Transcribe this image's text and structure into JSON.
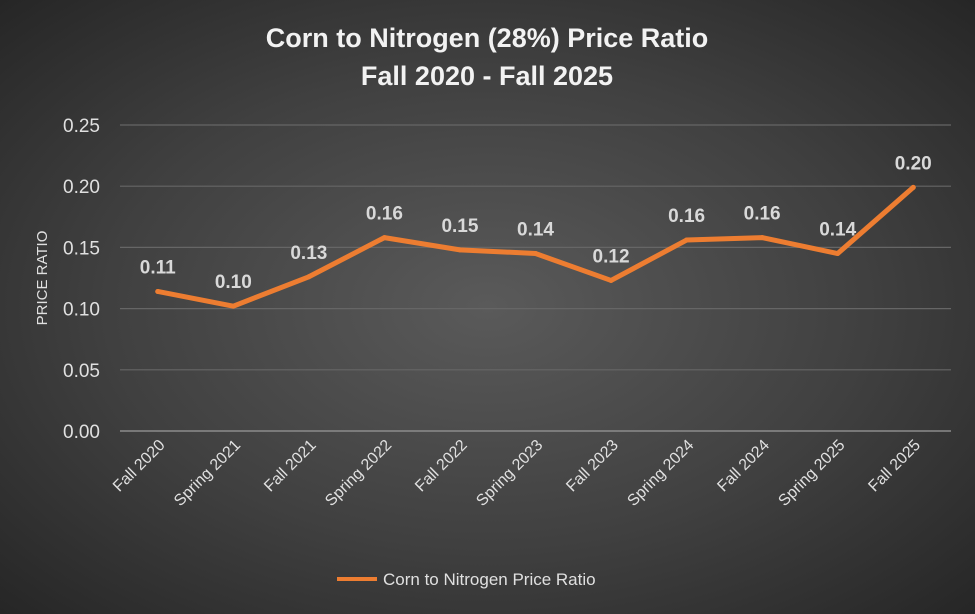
{
  "chart_data": {
    "type": "line",
    "title": [
      "Corn to Nitrogen (28%) Price Ratio",
      "Fall 2020 - Fall 2025"
    ],
    "xlabel": "",
    "ylabel": "PRICE RATIO",
    "ylim": [
      0,
      0.25
    ],
    "yticks": [
      "0.00",
      "0.05",
      "0.10",
      "0.15",
      "0.20",
      "0.25"
    ],
    "grid": true,
    "legend_position": "bottom",
    "categories": [
      "Fall 2020",
      "Spring 2021",
      "Fall 2021",
      "Spring 2022",
      "Fall 2022",
      "Spring 2023",
      "Fall 2023",
      "Spring 2024",
      "Fall 2024",
      "Spring 2025",
      "Fall 2025"
    ],
    "series": [
      {
        "name": "Corn to Nitrogen Price Ratio",
        "color": "#ED7D31",
        "values": [
          0.114,
          0.102,
          0.126,
          0.158,
          0.148,
          0.145,
          0.123,
          0.156,
          0.158,
          0.145,
          0.199
        ],
        "data_labels": [
          "0.11",
          "0.10",
          "0.13",
          "0.16",
          "0.15",
          "0.14",
          "0.12",
          "0.16",
          "0.16",
          "0.14",
          "0.20"
        ]
      }
    ]
  }
}
